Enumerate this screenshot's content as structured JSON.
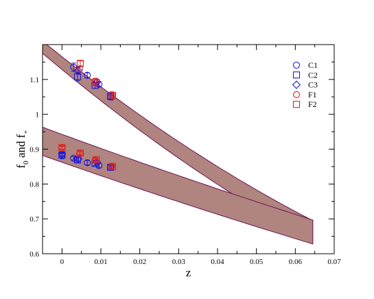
{
  "chart_data": {
    "type": "scatter",
    "xlabel": "z",
    "ylabel": "f",
    "ylabel_sub0": "0",
    "ylabel_mid": " and f",
    "ylabel_sub1": "+",
    "xlim": [
      -0.005,
      0.07
    ],
    "ylim": [
      0.6,
      1.2
    ],
    "xticks": [
      0,
      0.01,
      0.02,
      0.03,
      0.04,
      0.05,
      0.06,
      0.07
    ],
    "xtick_labels": [
      "0",
      "0.01",
      "0.02",
      "0.03",
      "0.04",
      "0.05",
      "0.06",
      "0.07"
    ],
    "yticks": [
      0.6,
      0.7,
      0.8,
      0.9,
      1.0,
      1.1
    ],
    "ytick_labels": [
      "0.6",
      "0.7",
      "0.8",
      "0.9",
      "1",
      "1.1"
    ],
    "grid": false,
    "legend_position": "top-right",
    "bands": [
      {
        "fill": "#b0847f",
        "edge": "#6b1452",
        "x": [
          -0.005,
          0.0645
        ],
        "upper": [
          1.21,
          0.695
        ],
        "lower": [
          1.175,
          0.635
        ]
      },
      {
        "fill": "#b0847f",
        "edge": "#6b1452",
        "x": [
          -0.005,
          0.0645
        ],
        "upper": [
          0.963,
          0.697
        ],
        "lower": [
          0.882,
          0.628
        ]
      }
    ],
    "series": [
      {
        "name": "C1",
        "marker": "circle",
        "color": "#1a1adb",
        "points": [
          {
            "x": 0.0,
            "y": 0.881,
            "err": 0.006
          },
          {
            "x": 0.003,
            "y": 1.135,
            "err": 0.012
          },
          {
            "x": 0.003,
            "y": 0.874,
            "err": 0.005
          },
          {
            "x": 0.0065,
            "y": 1.112,
            "err": 0.007
          },
          {
            "x": 0.0065,
            "y": 0.861,
            "err": 0.006
          },
          {
            "x": 0.0095,
            "y": 1.086,
            "err": 0.007
          },
          {
            "x": 0.0095,
            "y": 0.853,
            "err": 0.006
          },
          {
            "x": 0.0125,
            "y": 1.051,
            "err": 0.01
          },
          {
            "x": 0.0125,
            "y": 0.849,
            "err": 0.006
          }
        ]
      },
      {
        "name": "C2",
        "marker": "square",
        "color": "#1a1adb",
        "points": [
          {
            "x": 0.0,
            "y": 0.883,
            "err": 0.005
          },
          {
            "x": 0.004,
            "y": 1.108,
            "err": 0.012
          },
          {
            "x": 0.004,
            "y": 0.869,
            "err": 0.006
          },
          {
            "x": 0.0085,
            "y": 1.083,
            "err": 0.009
          },
          {
            "x": 0.0085,
            "y": 0.859,
            "err": 0.006
          },
          {
            "x": 0.0125,
            "y": 1.052,
            "err": 0.01
          },
          {
            "x": 0.0125,
            "y": 0.848,
            "err": 0.005
          }
        ]
      },
      {
        "name": "C3",
        "marker": "diamond",
        "color": "#1a1adb",
        "points": [
          {
            "x": 0.0,
            "y": 0.886,
            "err": 0.004
          },
          {
            "x": 0.0042,
            "y": 1.125,
            "err": 0.01
          },
          {
            "x": 0.0042,
            "y": 0.872,
            "err": 0.006
          },
          {
            "x": 0.009,
            "y": 1.093,
            "err": 0.007
          },
          {
            "x": 0.009,
            "y": 0.862,
            "err": 0.005
          }
        ]
      },
      {
        "name": "F1",
        "marker": "circle",
        "color": "#e0201b",
        "points": [
          {
            "x": 0.0,
            "y": 0.905,
            "err": 0.005
          },
          {
            "x": 0.0045,
            "y": 1.13,
            "err": 0.008
          },
          {
            "x": 0.0045,
            "y": 0.888,
            "err": 0.006
          },
          {
            "x": 0.0085,
            "y": 1.095,
            "err": 0.008
          },
          {
            "x": 0.0085,
            "y": 0.868,
            "err": 0.006
          },
          {
            "x": 0.0128,
            "y": 1.056,
            "err": 0.008
          },
          {
            "x": 0.0128,
            "y": 0.851,
            "err": 0.005
          }
        ]
      },
      {
        "name": "F2",
        "marker": "square",
        "color": "#e0201b",
        "points": [
          {
            "x": 0.0,
            "y": 0.904,
            "err": 0.004
          },
          {
            "x": 0.0047,
            "y": 1.146,
            "err": 0.007
          },
          {
            "x": 0.0047,
            "y": 0.889,
            "err": 0.005
          },
          {
            "x": 0.0088,
            "y": 1.091,
            "err": 0.008
          },
          {
            "x": 0.0088,
            "y": 0.87,
            "err": 0.005
          },
          {
            "x": 0.013,
            "y": 1.054,
            "err": 0.008
          },
          {
            "x": 0.013,
            "y": 0.85,
            "err": 0.005
          }
        ]
      }
    ]
  }
}
